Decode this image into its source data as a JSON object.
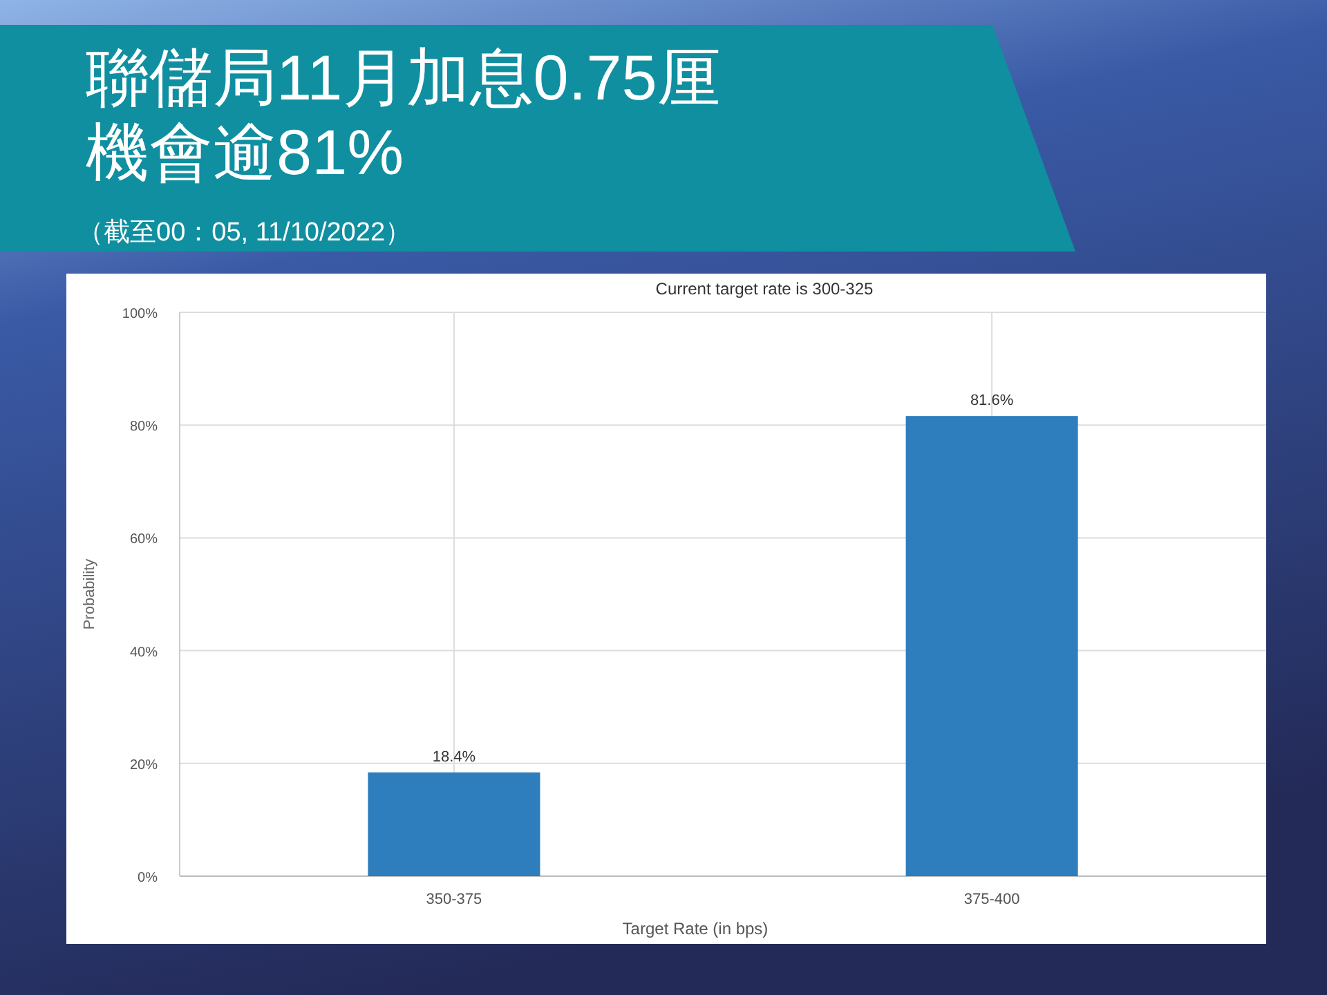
{
  "chart_data": {
    "type": "bar",
    "title": "聯儲局11月加息0.75厘機會逾81%",
    "subtitle": "Current target rate is 300-325",
    "annotations": [
      "（截至00：05, 11/10/2022）"
    ],
    "xlabel": "Target Rate (in bps)",
    "ylabel": "Probability",
    "categories": [
      "350-375",
      "375-400"
    ],
    "values": [
      18.4,
      81.6
    ],
    "color": "#2e7dbd",
    "value_labels": [
      "18.4%",
      "81.6%"
    ],
    "ylim": [
      0,
      100
    ],
    "yticks": [
      {
        "value": 0,
        "label": "0%"
      },
      {
        "value": 20,
        "label": "20%"
      },
      {
        "value": 40,
        "label": "40%"
      },
      {
        "value": 60,
        "label": "60%"
      },
      {
        "value": 80,
        "label": "80%"
      },
      {
        "value": 100,
        "label": "100%"
      }
    ],
    "grid": true
  }
}
